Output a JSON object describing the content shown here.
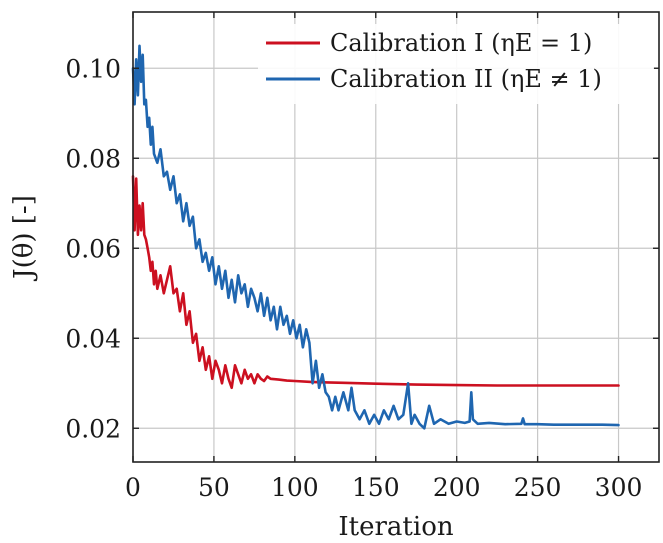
{
  "chart_data": {
    "type": "line",
    "title": "",
    "xlabel": "Iteration",
    "ylabel": "J(θ) [-]",
    "xlim": [
      0,
      325
    ],
    "ylim": [
      0.0125,
      0.1125
    ],
    "xticks": [
      0,
      50,
      100,
      150,
      200,
      250,
      300
    ],
    "yticks": [
      0.02,
      0.04,
      0.06,
      0.08,
      0.1
    ],
    "xtick_labels": [
      "0",
      "50",
      "100",
      "150",
      "200",
      "250",
      "300"
    ],
    "ytick_labels": [
      "0.02",
      "0.04",
      "0.06",
      "0.08",
      "0.10"
    ],
    "grid": true,
    "legend_position": "top-right",
    "series": [
      {
        "name": "Calibration I (ηE = 1)",
        "color": "#cc1020",
        "x": [
          0,
          1,
          2,
          3,
          4,
          5,
          6,
          7,
          8,
          9,
          10,
          11,
          12,
          13,
          14,
          15,
          17,
          19,
          21,
          23,
          25,
          27,
          29,
          31,
          33,
          35,
          37,
          39,
          41,
          43,
          45,
          47,
          49,
          51,
          53,
          55,
          57,
          59,
          61,
          63,
          65,
          67,
          69,
          71,
          73,
          75,
          77,
          79,
          81,
          83,
          85,
          90,
          95,
          100,
          110,
          120,
          130,
          150,
          175,
          200,
          225,
          250,
          275,
          300
        ],
        "y": [
          0.076,
          0.064,
          0.0755,
          0.063,
          0.0695,
          0.064,
          0.07,
          0.063,
          0.062,
          0.06,
          0.058,
          0.055,
          0.057,
          0.052,
          0.055,
          0.051,
          0.054,
          0.05,
          0.053,
          0.056,
          0.05,
          0.051,
          0.046,
          0.05,
          0.043,
          0.046,
          0.039,
          0.041,
          0.035,
          0.038,
          0.033,
          0.036,
          0.031,
          0.035,
          0.033,
          0.03,
          0.034,
          0.031,
          0.029,
          0.034,
          0.032,
          0.03,
          0.033,
          0.031,
          0.032,
          0.03,
          0.032,
          0.031,
          0.0305,
          0.0315,
          0.031,
          0.0308,
          0.0306,
          0.0305,
          0.0303,
          0.0302,
          0.0301,
          0.0299,
          0.0297,
          0.0296,
          0.0295,
          0.0295,
          0.0295,
          0.0295
        ]
      },
      {
        "name": "Calibration II (ηE ≠ 1)",
        "color": "#1f66b0",
        "x": [
          0,
          1,
          2,
          3,
          4,
          5,
          6,
          7,
          8,
          9,
          10,
          11,
          12,
          13,
          15,
          17,
          19,
          21,
          23,
          25,
          27,
          29,
          31,
          33,
          35,
          37,
          39,
          41,
          43,
          45,
          47,
          49,
          51,
          53,
          55,
          57,
          59,
          61,
          63,
          65,
          67,
          69,
          71,
          73,
          75,
          77,
          79,
          81,
          83,
          85,
          87,
          89,
          91,
          93,
          95,
          97,
          99,
          101,
          103,
          105,
          107,
          109,
          111,
          113,
          115,
          117,
          119,
          121,
          123,
          125,
          127,
          130,
          133,
          135,
          137,
          140,
          143,
          146,
          149,
          152,
          155,
          158,
          161,
          164,
          167,
          170,
          172,
          174,
          177,
          180,
          183,
          186,
          190,
          195,
          200,
          205,
          208,
          209,
          210,
          213,
          220,
          230,
          240,
          241,
          242,
          250,
          260,
          270,
          280,
          290,
          300
        ],
        "y": [
          0.1,
          0.092,
          0.102,
          0.094,
          0.105,
          0.097,
          0.103,
          0.092,
          0.093,
          0.087,
          0.089,
          0.083,
          0.087,
          0.081,
          0.079,
          0.082,
          0.076,
          0.077,
          0.073,
          0.076,
          0.07,
          0.072,
          0.066,
          0.07,
          0.065,
          0.067,
          0.06,
          0.062,
          0.057,
          0.059,
          0.055,
          0.058,
          0.052,
          0.056,
          0.051,
          0.055,
          0.049,
          0.053,
          0.048,
          0.054,
          0.05,
          0.052,
          0.047,
          0.051,
          0.049,
          0.046,
          0.05,
          0.045,
          0.049,
          0.044,
          0.047,
          0.042,
          0.047,
          0.043,
          0.045,
          0.041,
          0.044,
          0.04,
          0.043,
          0.038,
          0.042,
          0.039,
          0.03,
          0.035,
          0.029,
          0.032,
          0.028,
          0.027,
          0.024,
          0.027,
          0.024,
          0.028,
          0.024,
          0.029,
          0.024,
          0.022,
          0.024,
          0.021,
          0.023,
          0.021,
          0.024,
          0.022,
          0.025,
          0.022,
          0.023,
          0.03,
          0.021,
          0.023,
          0.021,
          0.02,
          0.025,
          0.021,
          0.022,
          0.021,
          0.0215,
          0.0212,
          0.0215,
          0.028,
          0.022,
          0.021,
          0.0212,
          0.0209,
          0.021,
          0.0222,
          0.0209,
          0.0209,
          0.0208,
          0.0208,
          0.0208,
          0.0208,
          0.0207
        ]
      }
    ]
  }
}
